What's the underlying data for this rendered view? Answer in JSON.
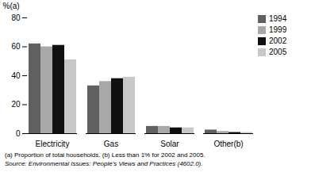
{
  "chart_data": {
    "type": "bar",
    "ylabel": "%(a)",
    "categories": [
      "Electricity",
      "Gas",
      "Solar",
      "Other(b)"
    ],
    "series": [
      {
        "name": "1994",
        "color": "#606060",
        "values": [
          62,
          33,
          5,
          2.5
        ]
      },
      {
        "name": "1999",
        "color": "#a8a8a8",
        "values": [
          60,
          36,
          5,
          1.5
        ]
      },
      {
        "name": "2002",
        "color": "#101010",
        "values": [
          61,
          38,
          4,
          0.8
        ]
      },
      {
        "name": "2005",
        "color": "#c8c8c8",
        "values": [
          51,
          39,
          4,
          0.8
        ]
      }
    ],
    "ylim": [
      0,
      80
    ],
    "yticks": [
      0,
      20,
      40,
      60,
      80
    ],
    "grid": false,
    "legend": "upper right",
    "annotations": [
      "(a) Proportion of total households.  (b) Less than 1% for 2002 and 2005.",
      "Source: Environmental Issues: People's Views and Practices (4602.0)."
    ]
  }
}
